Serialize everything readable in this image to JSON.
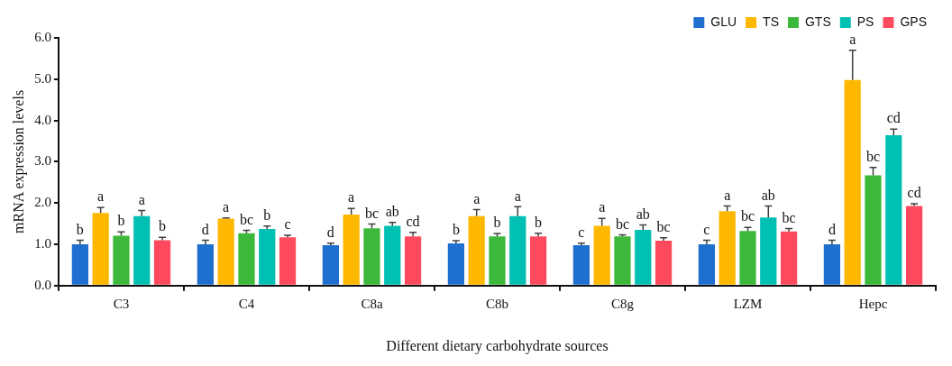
{
  "chart_data": {
    "type": "bar",
    "xlabel": "Different dietary carbohydrate sources",
    "ylabel": "mRNA expression levels",
    "categories": [
      "C3",
      "C4",
      "C8a",
      "C8b",
      "C8g",
      "LZM",
      "Hepc"
    ],
    "series": [
      {
        "name": "GLU",
        "color": "#1f6fce",
        "values": [
          1.0,
          1.0,
          0.98,
          1.02,
          0.98,
          1.0,
          1.0
        ],
        "errors": [
          0.1,
          0.1,
          0.05,
          0.07,
          0.05,
          0.1,
          0.1
        ],
        "value_labels": [
          "b",
          "d",
          "d",
          "b",
          "c",
          "c",
          "d"
        ]
      },
      {
        "name": "TS",
        "color": "#ffb800",
        "values": [
          1.76,
          1.62,
          1.72,
          1.68,
          1.45,
          1.8,
          4.98
        ],
        "errors": [
          0.13,
          0.02,
          0.15,
          0.16,
          0.18,
          0.13,
          0.72
        ],
        "value_labels": [
          "a",
          "a",
          "a",
          "a",
          "a",
          "a",
          "a"
        ]
      },
      {
        "name": "GTS",
        "color": "#3cb93a",
        "values": [
          1.21,
          1.27,
          1.39,
          1.19,
          1.19,
          1.32,
          2.67
        ],
        "errors": [
          0.09,
          0.07,
          0.1,
          0.07,
          0.04,
          0.09,
          0.19
        ],
        "value_labels": [
          "b",
          "bc",
          "bc",
          "b",
          "bc",
          "bc",
          "bc"
        ]
      },
      {
        "name": "PS",
        "color": "#00bfb3",
        "values": [
          1.68,
          1.37,
          1.45,
          1.68,
          1.35,
          1.65,
          3.64
        ],
        "errors": [
          0.14,
          0.07,
          0.08,
          0.23,
          0.12,
          0.28,
          0.15
        ],
        "value_labels": [
          "a",
          "b",
          "ab",
          "a",
          "ab",
          "ab",
          "cd"
        ]
      },
      {
        "name": "GPS",
        "color": "#ff4a5e",
        "values": [
          1.1,
          1.17,
          1.19,
          1.19,
          1.09,
          1.31,
          1.93
        ],
        "errors": [
          0.07,
          0.05,
          0.1,
          0.08,
          0.07,
          0.07,
          0.05
        ],
        "value_labels": [
          "b",
          "c",
          "cd",
          "b",
          "bc",
          "bc",
          "cd"
        ]
      }
    ],
    "ylim": [
      0,
      6
    ],
    "yticks": [
      {
        "value": 0,
        "label": "0.0"
      },
      {
        "value": 1,
        "label": "1.0"
      },
      {
        "value": 2,
        "label": "2.0"
      },
      {
        "value": 3,
        "label": "3.0"
      },
      {
        "value": 4,
        "label": "4.0"
      },
      {
        "value": 5,
        "label": "5.0"
      },
      {
        "value": 6,
        "label": "6.0"
      }
    ],
    "grid": false,
    "legend": "top right"
  }
}
